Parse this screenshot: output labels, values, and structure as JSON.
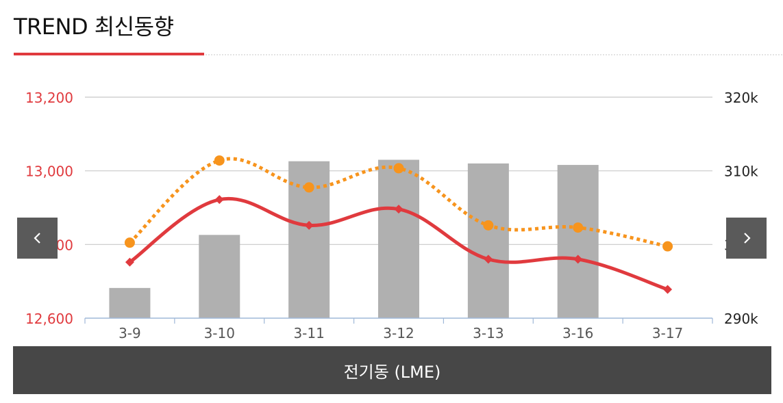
{
  "header": {
    "title": "TREND 최신동향"
  },
  "navigation": {
    "prev_icon": "chevron-left-icon",
    "next_icon": "chevron-right-icon"
  },
  "footer": {
    "label": "전기동 (LME)"
  },
  "colors": {
    "accent": "#e03a3e",
    "line_primary": "#e03a3e",
    "line_secondary": "#f7941d",
    "bar": "#b0b0b0",
    "left_axis_text": "#e03a3e",
    "right_axis_text": "#222222",
    "grid": "#c8c8c8",
    "x_axis": "#9fb8d8"
  },
  "chart_data": {
    "type": "bar",
    "categories": [
      "3-9",
      "3-10",
      "3-11",
      "3-12",
      "3-13",
      "3-16",
      "3-17"
    ],
    "y_left": {
      "ylim": [
        12600,
        13200
      ],
      "ticks": [
        "12,600",
        "12,800",
        "13,000",
        "13,200"
      ],
      "tick_values": [
        12600,
        12800,
        13000,
        13200
      ]
    },
    "y_right": {
      "ylim": [
        290,
        320
      ],
      "ticks": [
        "290k",
        "300k",
        "310k",
        "320k"
      ],
      "tick_values": [
        290,
        300,
        310,
        320
      ]
    },
    "grid": true,
    "legend": "none",
    "series": [
      {
        "type": "bar",
        "axis": "right",
        "values": [
          294.1,
          301.3,
          311.3,
          311.5,
          311.0,
          310.8,
          null
        ]
      },
      {
        "type": "line",
        "style": "solid",
        "marker": "diamond",
        "axis": "left",
        "values": [
          12752,
          12922,
          12852,
          12896,
          12760,
          12760,
          12678
        ]
      },
      {
        "type": "line",
        "style": "dotted",
        "marker": "circle",
        "axis": "left",
        "values": [
          12805,
          13028,
          12955,
          13007,
          12852,
          12846,
          12795
        ]
      }
    ]
  }
}
